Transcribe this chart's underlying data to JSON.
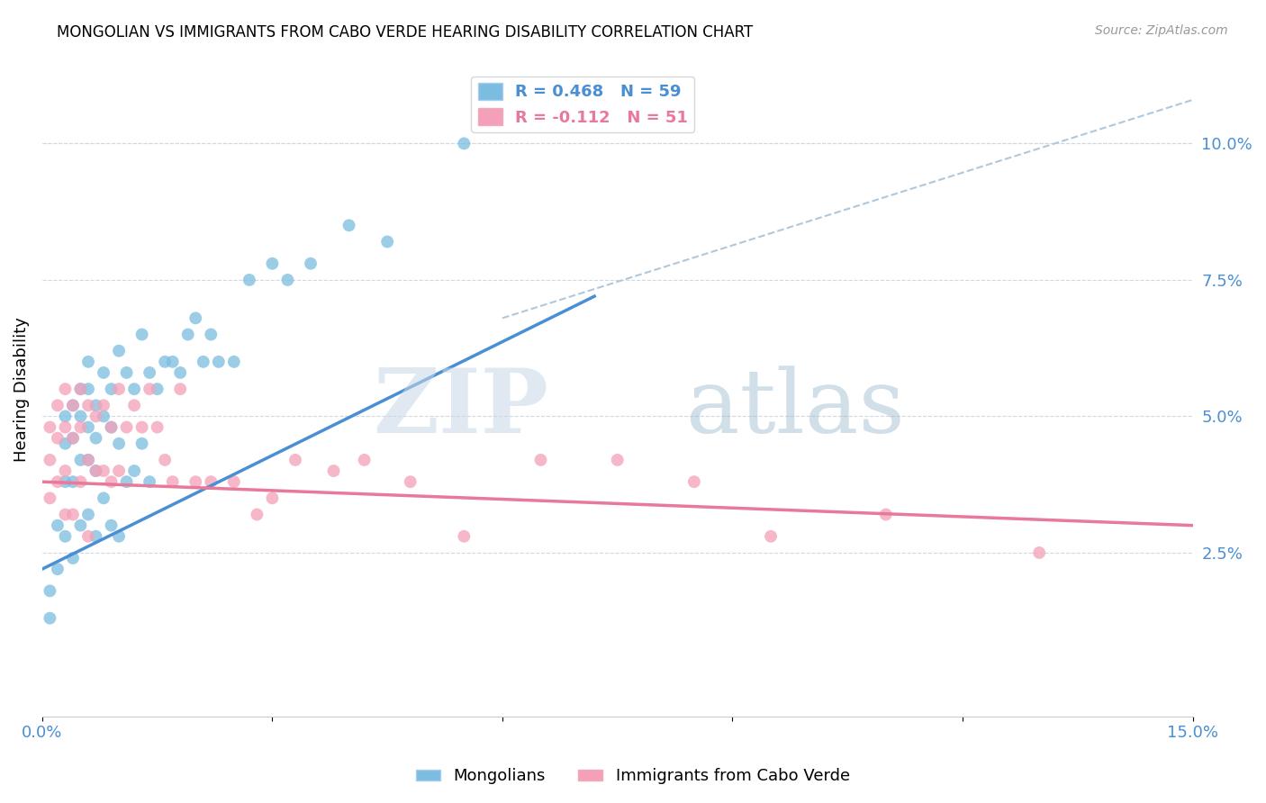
{
  "title": "MONGOLIAN VS IMMIGRANTS FROM CABO VERDE HEARING DISABILITY CORRELATION CHART",
  "source": "Source: ZipAtlas.com",
  "ylabel": "Hearing Disability",
  "xlim": [
    0.0,
    0.15
  ],
  "ylim": [
    -0.005,
    0.115
  ],
  "x_ticks": [
    0.0,
    0.03,
    0.06,
    0.09,
    0.12,
    0.15
  ],
  "x_tick_labels": [
    "0.0%",
    "",
    "",
    "",
    "",
    "15.0%"
  ],
  "y_ticks_right": [
    0.025,
    0.05,
    0.075,
    0.1
  ],
  "y_tick_labels_right": [
    "2.5%",
    "5.0%",
    "7.5%",
    "10.0%"
  ],
  "legend_mongolians": "R = 0.468   N = 59",
  "legend_cabo_verde": "R = -0.112   N = 51",
  "blue_color": "#7bbde0",
  "pink_color": "#f4a0b8",
  "blue_line_color": "#4a8fd4",
  "pink_line_color": "#e8799a",
  "dashed_line_color": "#b0c8dc",
  "watermark_zip": "ZIP",
  "watermark_atlas": "atlas",
  "mongolian_scatter_x": [
    0.001,
    0.001,
    0.002,
    0.002,
    0.003,
    0.003,
    0.003,
    0.003,
    0.004,
    0.004,
    0.004,
    0.004,
    0.005,
    0.005,
    0.005,
    0.005,
    0.006,
    0.006,
    0.006,
    0.006,
    0.006,
    0.007,
    0.007,
    0.007,
    0.007,
    0.008,
    0.008,
    0.008,
    0.009,
    0.009,
    0.009,
    0.01,
    0.01,
    0.01,
    0.011,
    0.011,
    0.012,
    0.012,
    0.013,
    0.013,
    0.014,
    0.014,
    0.015,
    0.016,
    0.017,
    0.018,
    0.019,
    0.02,
    0.021,
    0.022,
    0.023,
    0.025,
    0.027,
    0.03,
    0.032,
    0.035,
    0.04,
    0.045,
    0.055
  ],
  "mongolian_scatter_y": [
    0.018,
    0.013,
    0.03,
    0.022,
    0.05,
    0.045,
    0.038,
    0.028,
    0.052,
    0.046,
    0.038,
    0.024,
    0.055,
    0.05,
    0.042,
    0.03,
    0.06,
    0.055,
    0.048,
    0.042,
    0.032,
    0.052,
    0.046,
    0.04,
    0.028,
    0.058,
    0.05,
    0.035,
    0.055,
    0.048,
    0.03,
    0.062,
    0.045,
    0.028,
    0.058,
    0.038,
    0.055,
    0.04,
    0.065,
    0.045,
    0.058,
    0.038,
    0.055,
    0.06,
    0.06,
    0.058,
    0.065,
    0.068,
    0.06,
    0.065,
    0.06,
    0.06,
    0.075,
    0.078,
    0.075,
    0.078,
    0.085,
    0.082,
    0.1
  ],
  "cabo_verde_scatter_x": [
    0.001,
    0.001,
    0.001,
    0.002,
    0.002,
    0.002,
    0.003,
    0.003,
    0.003,
    0.003,
    0.004,
    0.004,
    0.004,
    0.005,
    0.005,
    0.005,
    0.006,
    0.006,
    0.006,
    0.007,
    0.007,
    0.008,
    0.008,
    0.009,
    0.009,
    0.01,
    0.01,
    0.011,
    0.012,
    0.013,
    0.014,
    0.015,
    0.016,
    0.017,
    0.018,
    0.02,
    0.022,
    0.025,
    0.028,
    0.03,
    0.033,
    0.038,
    0.042,
    0.048,
    0.055,
    0.065,
    0.075,
    0.085,
    0.095,
    0.11,
    0.13
  ],
  "cabo_verde_scatter_y": [
    0.048,
    0.042,
    0.035,
    0.052,
    0.046,
    0.038,
    0.055,
    0.048,
    0.04,
    0.032,
    0.052,
    0.046,
    0.032,
    0.055,
    0.048,
    0.038,
    0.052,
    0.042,
    0.028,
    0.05,
    0.04,
    0.052,
    0.04,
    0.048,
    0.038,
    0.055,
    0.04,
    0.048,
    0.052,
    0.048,
    0.055,
    0.048,
    0.042,
    0.038,
    0.055,
    0.038,
    0.038,
    0.038,
    0.032,
    0.035,
    0.042,
    0.04,
    0.042,
    0.038,
    0.028,
    0.042,
    0.042,
    0.038,
    0.028,
    0.032,
    0.025
  ],
  "blue_trendline_x": [
    0.0,
    0.072
  ],
  "blue_trendline_y": [
    0.022,
    0.072
  ],
  "pink_trendline_x": [
    0.0,
    0.15
  ],
  "pink_trendline_y": [
    0.038,
    0.03
  ],
  "dashed_trendline_x": [
    0.06,
    0.15
  ],
  "dashed_trendline_y": [
    0.068,
    0.108
  ]
}
